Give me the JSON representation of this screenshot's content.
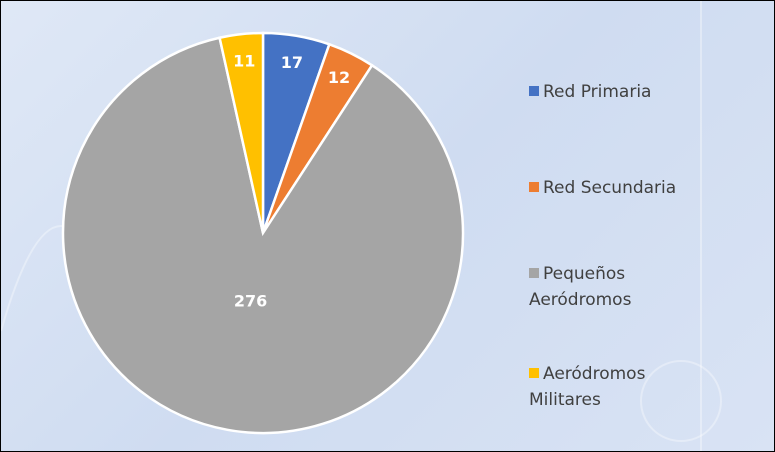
{
  "chart_data": {
    "type": "pie",
    "categories": [
      "Red Primaria",
      "Red Secundaria",
      "Pequeños Aeródromos",
      "Aeródromos Militares"
    ],
    "values": [
      17,
      12,
      276,
      11
    ],
    "colors": [
      "#4472c4",
      "#ed7d31",
      "#a5a5a5",
      "#ffc000"
    ],
    "legend": "right"
  }
}
